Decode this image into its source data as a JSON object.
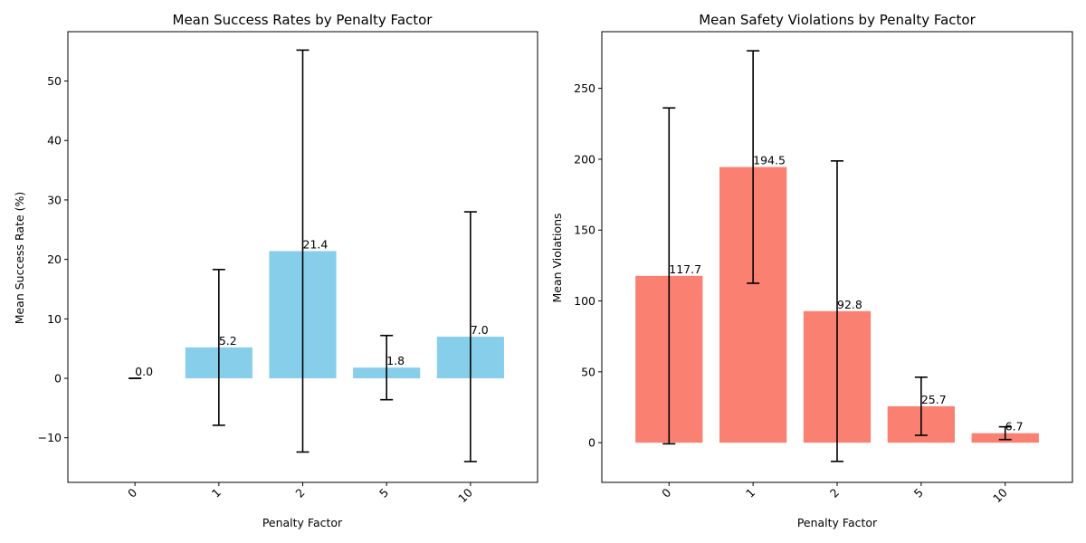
{
  "chart_data": [
    {
      "type": "bar",
      "title": "Mean Success Rates by Penalty Factor",
      "xlabel": "Penalty Factor",
      "ylabel": "Mean Success Rate (%)",
      "categories": [
        "0",
        "1",
        "2",
        "5",
        "10"
      ],
      "values": [
        0.0,
        5.2,
        21.4,
        1.8,
        7.0
      ],
      "errors": [
        0.0,
        13.1,
        33.8,
        5.4,
        21.0
      ],
      "data_labels": [
        "0.0",
        "5.2",
        "21.4",
        "1.8",
        "7.0"
      ],
      "ylim": [
        -17.5,
        58.3
      ],
      "yticks": [
        -10,
        0,
        10,
        20,
        30,
        40,
        50
      ],
      "ytick_labels": [
        "−10",
        "0",
        "10",
        "20",
        "30",
        "40",
        "50"
      ],
      "bar_color": "#87ceeb",
      "grid": false,
      "x_tick_rotation": 45
    },
    {
      "type": "bar",
      "title": "Mean Safety Violations by Penalty Factor",
      "xlabel": "Penalty Factor",
      "ylabel": "Mean Violations",
      "categories": [
        "0",
        "1",
        "2",
        "5",
        "10"
      ],
      "values": [
        117.7,
        194.5,
        92.8,
        25.7,
        6.7
      ],
      "errors": [
        118.5,
        82.0,
        106.0,
        20.5,
        4.5
      ],
      "data_labels": [
        "117.7",
        "194.5",
        "92.8",
        "25.7",
        "6.7"
      ],
      "ylim": [
        -28.0,
        290.0
      ],
      "yticks": [
        0,
        50,
        100,
        150,
        200,
        250
      ],
      "ytick_labels": [
        "0",
        "50",
        "100",
        "150",
        "200",
        "250"
      ],
      "bar_color": "#fa8072",
      "grid": false,
      "x_tick_rotation": 45
    }
  ]
}
